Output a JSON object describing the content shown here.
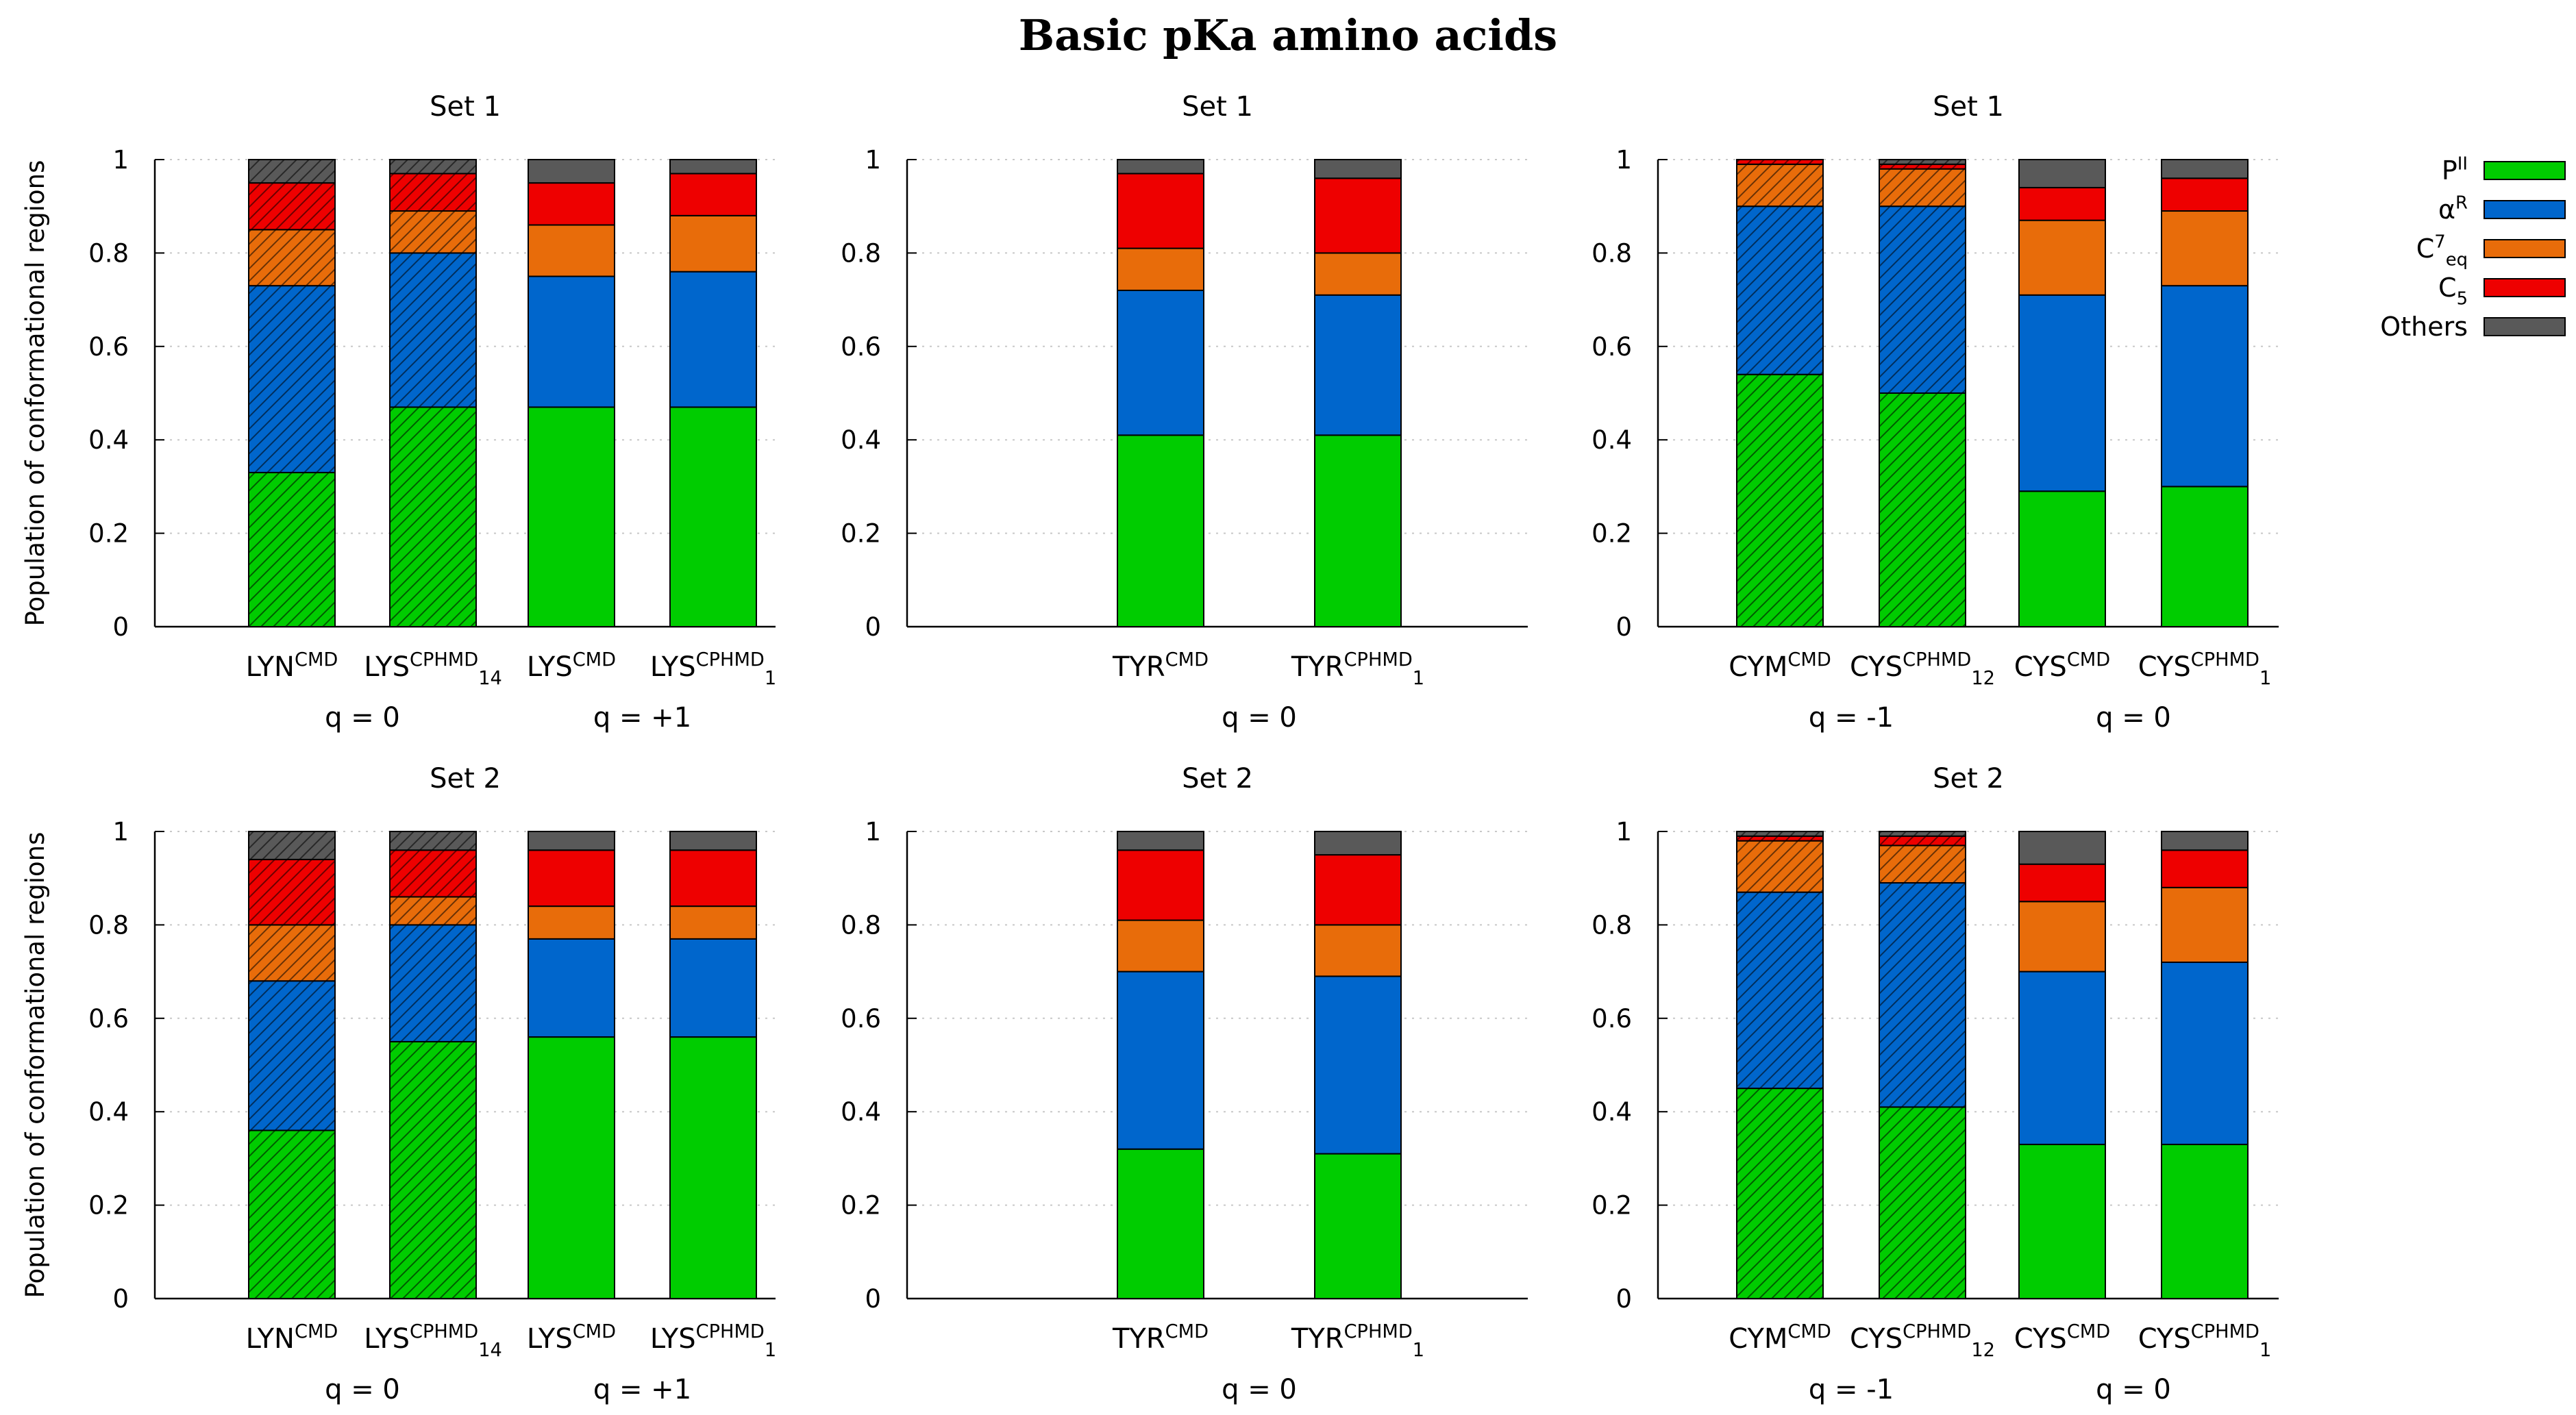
{
  "title": "Basic pKa amino acids",
  "ylabel": "Population of conformational regions",
  "y_ticks": [
    "0",
    "0.2",
    "0.4",
    "0.6",
    "0.8",
    "1"
  ],
  "regions": [
    {
      "key": "PII",
      "base": "P",
      "sup": "II",
      "sub": "",
      "color": "#00cc00"
    },
    {
      "key": "aR",
      "base": "α",
      "sup": "R",
      "sub": "",
      "color": "#0066cc"
    },
    {
      "key": "C7eq",
      "base": "C",
      "sup": "7",
      "sub": "eq",
      "color": "#e86c0a"
    },
    {
      "key": "C5",
      "base": "C",
      "sup": "",
      "sub": "5",
      "color": "#ee0000"
    },
    {
      "key": "Others",
      "base": "Others",
      "sup": "",
      "sub": "",
      "color": "#595959"
    }
  ],
  "chart_data": [
    {
      "type": "bar",
      "stacked": true,
      "title": "Set 1",
      "ylim": [
        0,
        1
      ],
      "ylabel": "Population of conformational regions",
      "bars": [
        {
          "base": "LYN",
          "sup": "CMD",
          "sub": "",
          "hatched": true,
          "values": [
            0.33,
            0.4,
            0.12,
            0.1,
            0.05
          ]
        },
        {
          "base": "LYS",
          "sup": "CPHMD",
          "sub": "14",
          "hatched": true,
          "values": [
            0.47,
            0.33,
            0.09,
            0.08,
            0.03
          ]
        },
        {
          "base": "LYS",
          "sup": "CMD",
          "sub": "",
          "hatched": false,
          "values": [
            0.47,
            0.28,
            0.11,
            0.09,
            0.05
          ]
        },
        {
          "base": "LYS",
          "sup": "CPHMD",
          "sub": "1",
          "hatched": false,
          "values": [
            0.47,
            0.29,
            0.12,
            0.09,
            0.03
          ]
        }
      ],
      "groups": [
        {
          "label": "q = 0",
          "bars": [
            0,
            1
          ]
        },
        {
          "label": "q = +1",
          "bars": [
            2,
            3
          ]
        }
      ]
    },
    {
      "type": "bar",
      "stacked": true,
      "title": "Set 1",
      "ylim": [
        0,
        1
      ],
      "bars": [
        {
          "base": "TYR",
          "sup": "CMD",
          "sub": "",
          "hatched": false,
          "values": [
            0.41,
            0.31,
            0.09,
            0.16,
            0.03
          ]
        },
        {
          "base": "TYR",
          "sup": "CPHMD",
          "sub": "1",
          "hatched": false,
          "values": [
            0.41,
            0.3,
            0.09,
            0.16,
            0.04
          ]
        }
      ],
      "groups": [
        {
          "label": "q = 0",
          "bars": [
            0,
            1
          ]
        }
      ]
    },
    {
      "type": "bar",
      "stacked": true,
      "title": "Set 1",
      "ylim": [
        0,
        1
      ],
      "bars": [
        {
          "base": "CYM",
          "sup": "CMD",
          "sub": "",
          "hatched": true,
          "values": [
            0.54,
            0.36,
            0.09,
            0.01,
            0.0
          ]
        },
        {
          "base": "CYS",
          "sup": "CPHMD",
          "sub": "12",
          "hatched": true,
          "values": [
            0.5,
            0.4,
            0.08,
            0.01,
            0.01
          ]
        },
        {
          "base": "CYS",
          "sup": "CMD",
          "sub": "",
          "hatched": false,
          "values": [
            0.29,
            0.42,
            0.16,
            0.07,
            0.06
          ]
        },
        {
          "base": "CYS",
          "sup": "CPHMD",
          "sub": "1",
          "hatched": false,
          "values": [
            0.3,
            0.43,
            0.16,
            0.07,
            0.04
          ]
        }
      ],
      "groups": [
        {
          "label": "q = -1",
          "bars": [
            0,
            1
          ]
        },
        {
          "label": "q = 0",
          "bars": [
            2,
            3
          ]
        }
      ]
    },
    {
      "type": "bar",
      "stacked": true,
      "title": "Set 2",
      "ylim": [
        0,
        1
      ],
      "ylabel": "Population of conformational regions",
      "bars": [
        {
          "base": "LYN",
          "sup": "CMD",
          "sub": "",
          "hatched": true,
          "values": [
            0.36,
            0.32,
            0.12,
            0.14,
            0.06
          ]
        },
        {
          "base": "LYS",
          "sup": "CPHMD",
          "sub": "14",
          "hatched": true,
          "values": [
            0.55,
            0.25,
            0.06,
            0.1,
            0.04
          ]
        },
        {
          "base": "LYS",
          "sup": "CMD",
          "sub": "",
          "hatched": false,
          "values": [
            0.56,
            0.21,
            0.07,
            0.12,
            0.04
          ]
        },
        {
          "base": "LYS",
          "sup": "CPHMD",
          "sub": "1",
          "hatched": false,
          "values": [
            0.56,
            0.21,
            0.07,
            0.12,
            0.04
          ]
        }
      ],
      "groups": [
        {
          "label": "q = 0",
          "bars": [
            0,
            1
          ]
        },
        {
          "label": "q = +1",
          "bars": [
            2,
            3
          ]
        }
      ]
    },
    {
      "type": "bar",
      "stacked": true,
      "title": "Set 2",
      "ylim": [
        0,
        1
      ],
      "bars": [
        {
          "base": "TYR",
          "sup": "CMD",
          "sub": "",
          "hatched": false,
          "values": [
            0.32,
            0.38,
            0.11,
            0.15,
            0.04
          ]
        },
        {
          "base": "TYR",
          "sup": "CPHMD",
          "sub": "1",
          "hatched": false,
          "values": [
            0.31,
            0.38,
            0.11,
            0.15,
            0.05
          ]
        }
      ],
      "groups": [
        {
          "label": "q = 0",
          "bars": [
            0,
            1
          ]
        }
      ]
    },
    {
      "type": "bar",
      "stacked": true,
      "title": "Set 2",
      "ylim": [
        0,
        1
      ],
      "bars": [
        {
          "base": "CYM",
          "sup": "CMD",
          "sub": "",
          "hatched": true,
          "values": [
            0.45,
            0.42,
            0.11,
            0.01,
            0.01
          ]
        },
        {
          "base": "CYS",
          "sup": "CPHMD",
          "sub": "12",
          "hatched": true,
          "values": [
            0.41,
            0.48,
            0.08,
            0.02,
            0.01
          ]
        },
        {
          "base": "CYS",
          "sup": "CMD",
          "sub": "",
          "hatched": false,
          "values": [
            0.33,
            0.37,
            0.15,
            0.08,
            0.07
          ]
        },
        {
          "base": "CYS",
          "sup": "CPHMD",
          "sub": "1",
          "hatched": false,
          "values": [
            0.33,
            0.39,
            0.16,
            0.08,
            0.04
          ]
        }
      ],
      "groups": [
        {
          "label": "q = -1",
          "bars": [
            0,
            1
          ]
        },
        {
          "label": "q = 0",
          "bars": [
            2,
            3
          ]
        }
      ]
    }
  ]
}
